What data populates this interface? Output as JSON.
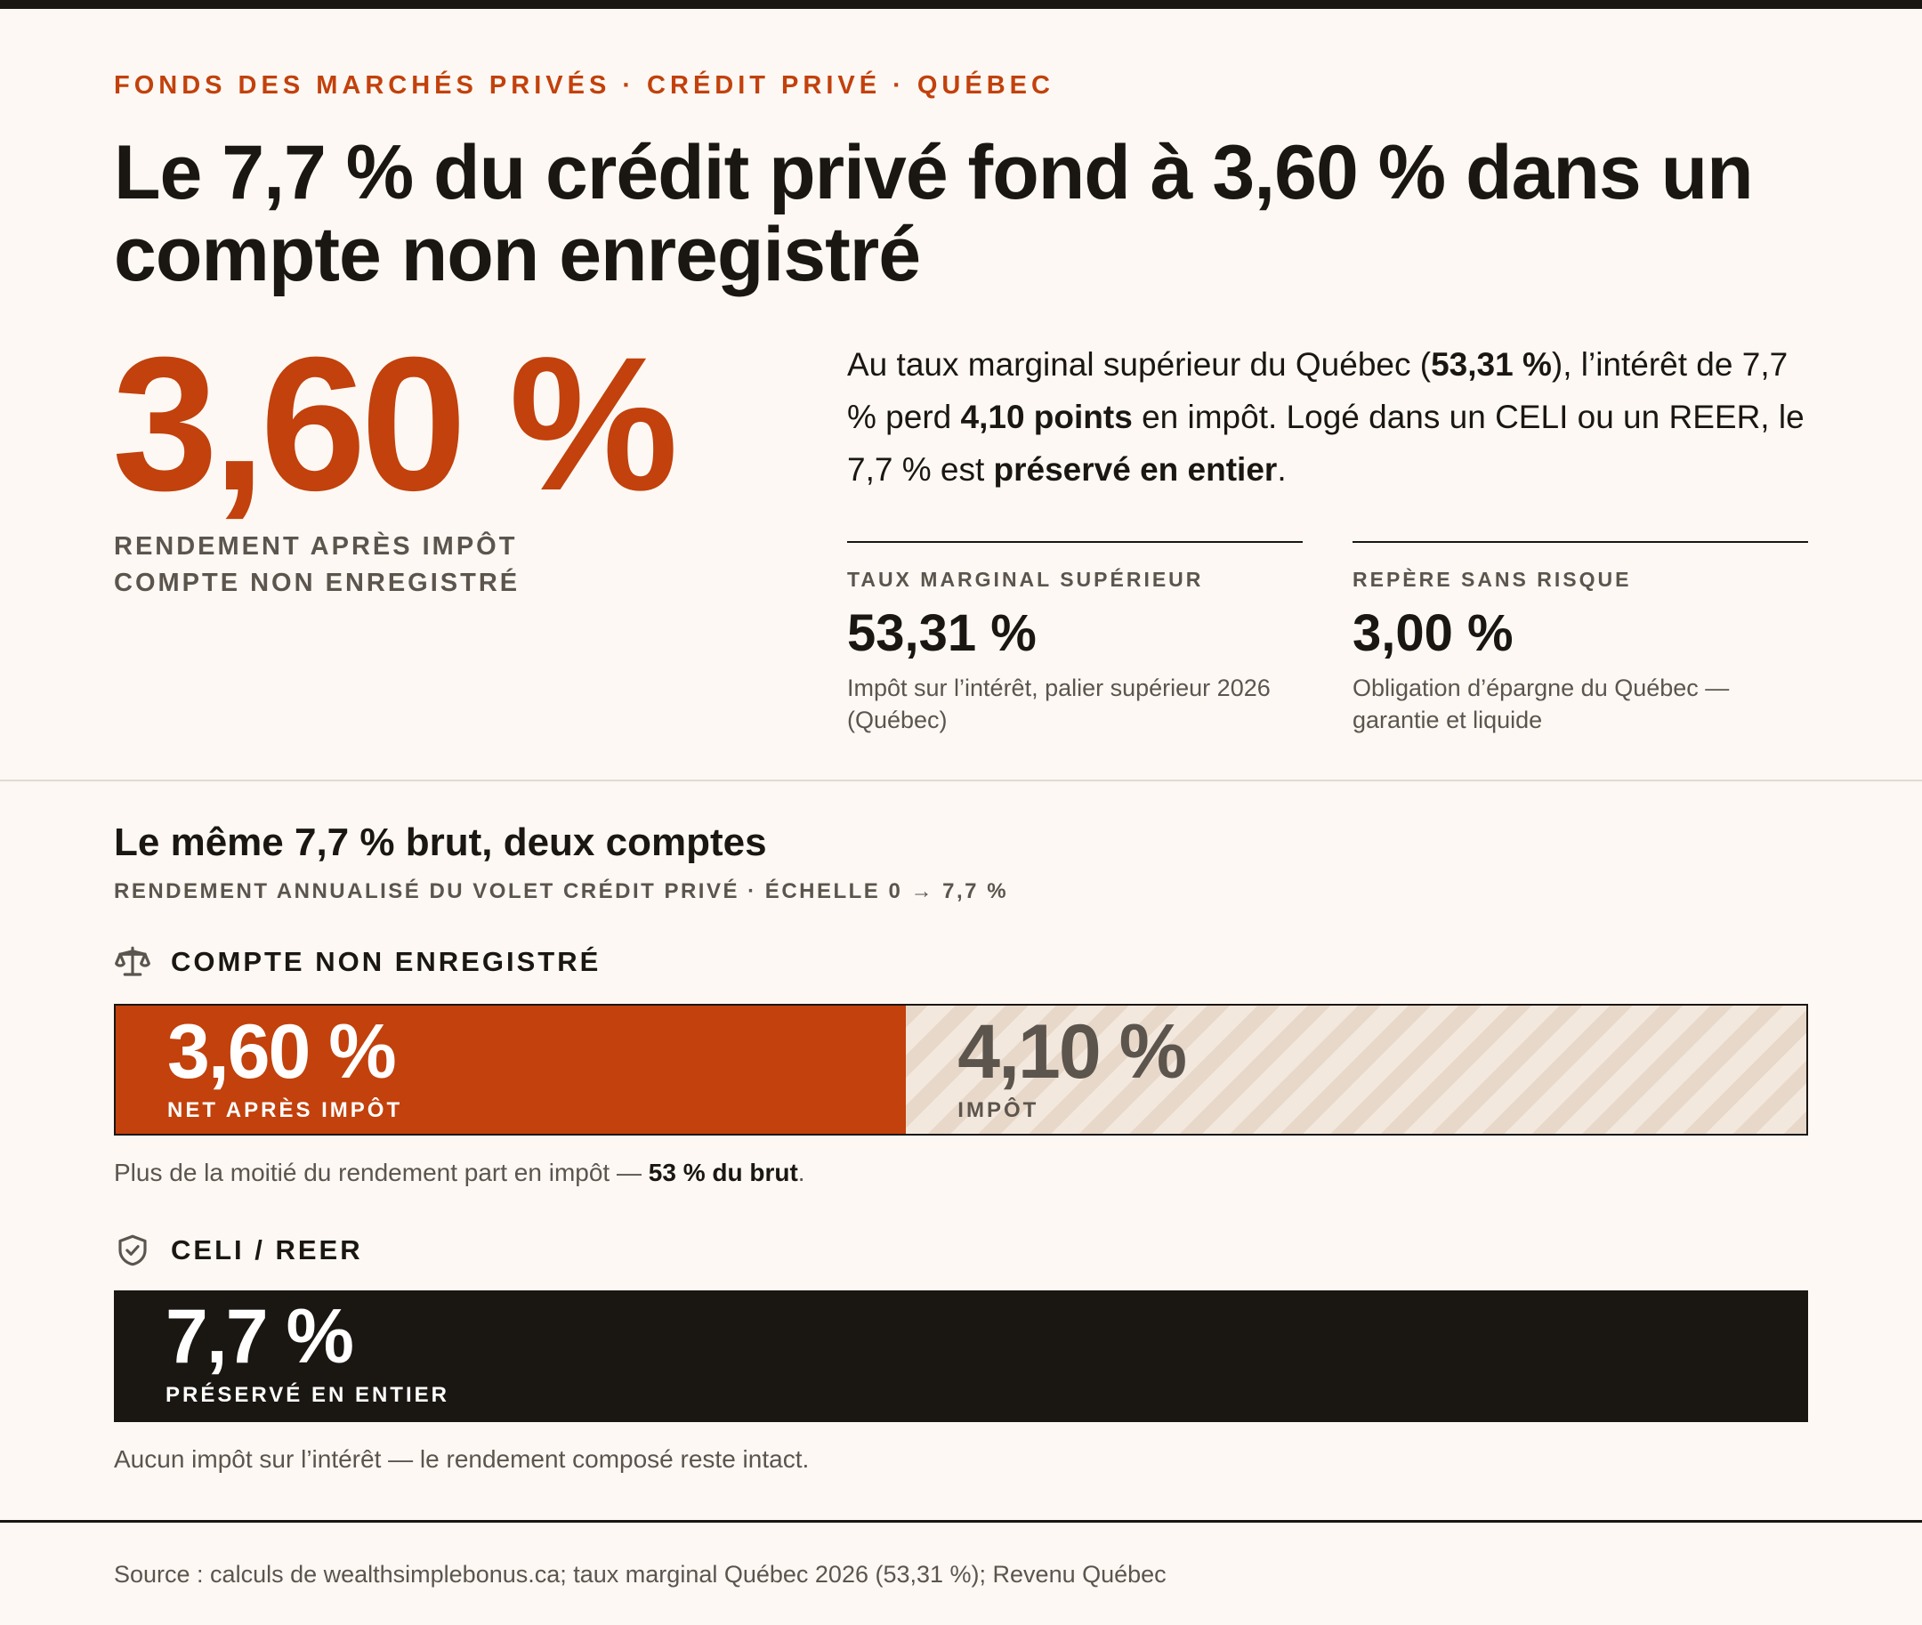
{
  "eyebrow": "FONDS DES MARCHÉS PRIVÉS · CRÉDIT PRIVÉ · QUÉBEC",
  "headline": "Le 7,7 % du crédit privé fond à 3,60 % dans un compte non enregistré",
  "hero": {
    "value": "3,60 %",
    "caption_line1": "RENDEMENT APRÈS IMPÔT",
    "caption_line2": "COMPTE NON ENREGISTRÉ"
  },
  "intro": {
    "p1": "Au taux marginal supérieur du Québec (",
    "b1": "53,31 %",
    "p2": "), l’intérêt de 7,7 % perd ",
    "b2": "4,10 points",
    "p3": " en impôt. Logé dans un CELI ou un REER, le 7,7 % est ",
    "b3": "préservé en entier",
    "p4": "."
  },
  "stats": [
    {
      "label": "TAUX MARGINAL SUPÉRIEUR",
      "value": "53,31 %",
      "desc": "Impôt sur l’intérêt, palier supérieur 2026 (Québec)"
    },
    {
      "label": "REPÈRE SANS RISQUE",
      "value": "3,00 %",
      "desc": "Obligation d’épargne du Québec — garantie et liquide"
    }
  ],
  "section": {
    "title": "Le même 7,7 % brut, deux comptes",
    "subtitle": "RENDEMENT ANNUALISÉ DU VOLET CRÉDIT PRIVÉ · ÉCHELLE 0 → 7,7 %"
  },
  "accounts": {
    "non_registered": {
      "label": "COMPTE NON ENREGISTRÉ",
      "icon": "scale-icon",
      "net_value": "3,60 %",
      "net_caption": "NET APRÈS IMPÔT",
      "tax_value": "4,10 %",
      "tax_caption": "IMPÔT",
      "note_text": "Plus de la moitié du rendement part en impôt — ",
      "note_bold": "53 % du brut",
      "note_end": "."
    },
    "registered": {
      "label": "CELI / REER",
      "icon": "shield-check-icon",
      "value": "7,7 %",
      "caption": "PRÉSERVÉ EN ENTIER",
      "note": "Aucun impôt sur l’intérêt — le rendement composé reste intact."
    }
  },
  "chart_data": {
    "type": "bar",
    "orientation": "horizontal",
    "stacked": true,
    "xlim": [
      0,
      7.7
    ],
    "categories": [
      "COMPTE NON ENREGISTRÉ",
      "CELI / REER"
    ],
    "series": [
      {
        "name": "NET APRÈS IMPÔT",
        "values": [
          3.6,
          null
        ],
        "color": "#c2410c"
      },
      {
        "name": "IMPÔT",
        "values": [
          4.1,
          null
        ],
        "color": "#f3e8dd"
      },
      {
        "name": "PRÉSERVÉ EN ENTIER",
        "values": [
          null,
          7.7
        ],
        "color": "#1a1612"
      }
    ]
  },
  "source": "Source : calculs de wealthsimplebonus.ca; taux marginal Québec 2026 (53,31 %); Revenu Québec",
  "colors": {
    "accent": "#c2410c",
    "ink": "#1a1612",
    "muted": "#5c554e",
    "background": "#fdf8f3"
  }
}
